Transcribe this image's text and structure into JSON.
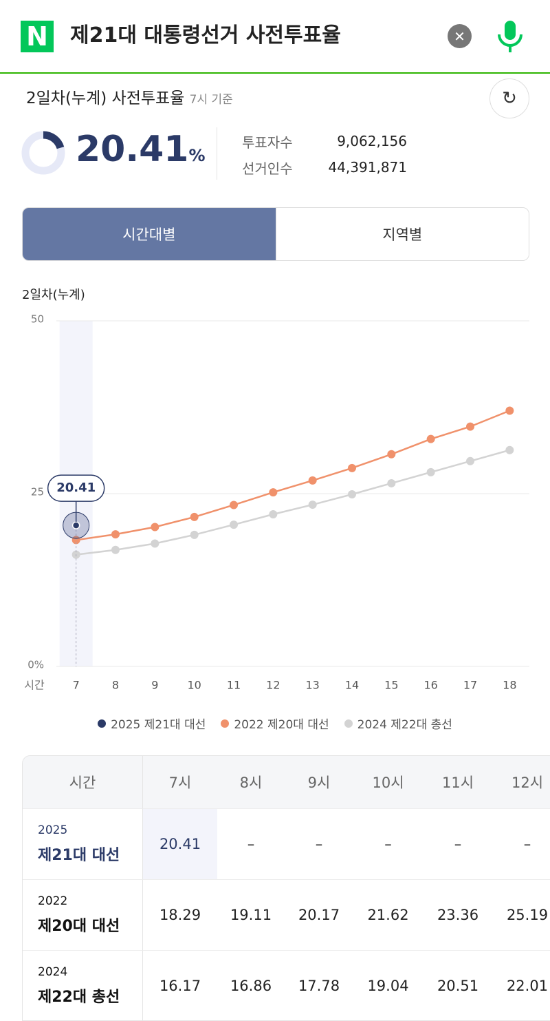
{
  "search": {
    "query": "제21대 대통령선거 사전투표율"
  },
  "summary": {
    "title": "2일차(누계) 사전투표율",
    "time_note": "7시 기준",
    "rate": 20.41,
    "rate_unit": "%",
    "stats": [
      {
        "label": "투표자수",
        "value": "9,062,156"
      },
      {
        "label": "선거인수",
        "value": "44,391,871"
      }
    ]
  },
  "tabs": {
    "items": [
      "시간대별",
      "지역별"
    ],
    "active": 0
  },
  "chart_data": {
    "type": "line",
    "subtitle": "2일차(누계)",
    "x_label": "시간",
    "x": [
      7,
      8,
      9,
      10,
      11,
      12,
      13,
      14,
      15,
      16,
      17,
      18
    ],
    "xlim": [
      6.5,
      18.5
    ],
    "highlight_x": 7,
    "ylim": [
      0,
      50
    ],
    "yticks": [
      {
        "value": 0,
        "label": "0%"
      },
      25,
      50
    ],
    "grid": true,
    "series": [
      {
        "name": "2025 제21대 대선",
        "color": "#2b3a67",
        "values": [
          20.41,
          null,
          null,
          null,
          null,
          null,
          null,
          null,
          null,
          null,
          null,
          null
        ]
      },
      {
        "name": "2022 제20대 대선",
        "color": "#f0916b",
        "values": [
          18.29,
          19.11,
          20.17,
          21.62,
          23.36,
          25.19,
          26.9,
          28.7,
          30.7,
          32.9,
          34.7,
          37.0
        ]
      },
      {
        "name": "2024 제22대 총선",
        "color": "#d3d3d3",
        "values": [
          16.17,
          16.86,
          17.78,
          19.04,
          20.51,
          22.01,
          23.4,
          24.9,
          26.5,
          28.1,
          29.7,
          31.3
        ]
      }
    ]
  },
  "table": {
    "header": [
      "시간",
      "7시",
      "8시",
      "9시",
      "10시",
      "11시",
      "12시"
    ],
    "rows": [
      {
        "year": "2025",
        "name": "제21대 대선",
        "cells": [
          "20.41",
          "–",
          "–",
          "–",
          "–",
          "–"
        ]
      },
      {
        "year": "2022",
        "name": "제20대 대선",
        "cells": [
          "18.29",
          "19.11",
          "20.17",
          "21.62",
          "23.36",
          "25.19"
        ]
      },
      {
        "year": "2024",
        "name": "제22대 총선",
        "cells": [
          "16.17",
          "16.86",
          "17.78",
          "19.04",
          "20.51",
          "22.01"
        ]
      }
    ]
  }
}
